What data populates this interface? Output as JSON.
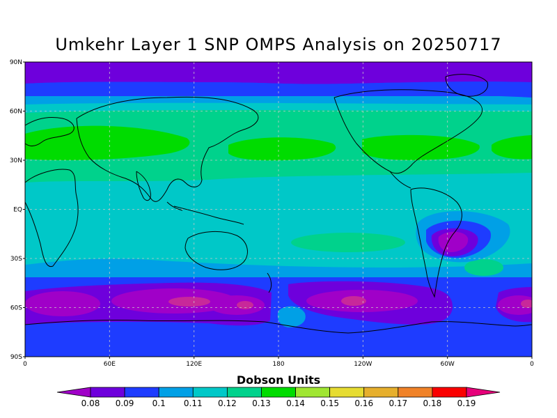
{
  "title": "Umkehr Layer 1 SNP OMPS Analysis on 20250717",
  "y_axis_labels": [
    "90N",
    "60N",
    "30N",
    "EQ",
    "30S",
    "60S",
    "90S"
  ],
  "x_axis_labels": [
    "0",
    "60E",
    "120E",
    "180",
    "120W",
    "60W",
    "0"
  ],
  "colorbar": {
    "title": "Dobson Units",
    "tick_labels": [
      "0.08",
      "0.09",
      "0.1",
      "0.11",
      "0.12",
      "0.13",
      "0.14",
      "0.15",
      "0.16",
      "0.17",
      "0.18",
      "0.19"
    ],
    "colors": [
      "#a000c8",
      "#6e00dc",
      "#1e3cff",
      "#00a0e6",
      "#00c8c8",
      "#00d28c",
      "#00dc00",
      "#a0e632",
      "#e6dc32",
      "#e6af2d",
      "#f08228",
      "#fa0000",
      "#e6007a"
    ]
  }
}
